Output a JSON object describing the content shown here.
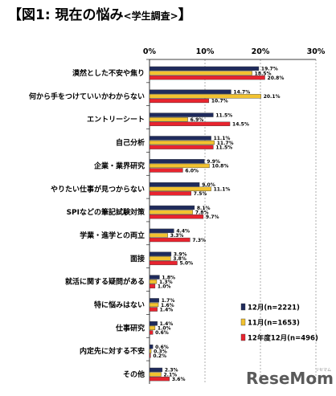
{
  "title": {
    "open": "【",
    "main": "図1: 現在の悩み",
    "sub": "<学生調査>",
    "close": "】"
  },
  "chart_data": {
    "type": "bar",
    "orientation": "horizontal",
    "xlim": [
      0,
      30
    ],
    "ticks": [
      "0%",
      "10%",
      "20%",
      "30%"
    ],
    "grid": true,
    "legend_position": "bottom-right",
    "categories": [
      "漠然とした不安や焦り",
      "何から手をつけていいかわからない",
      "エントリーシート",
      "自己分析",
      "企業・業界研究",
      "やりたい仕事が見つからない",
      "SPIなどの筆記試験対策",
      "学業・進学との両立",
      "面接",
      "就活に関する疑問がある",
      "特に悩みはない",
      "仕事研究",
      "内定先に対する不安",
      "その他"
    ],
    "series": [
      {
        "name": "12月(n=2221)",
        "color": "#1f2b5c",
        "values": [
          19.7,
          14.7,
          11.5,
          11.1,
          9.9,
          9.0,
          8.1,
          4.4,
          3.9,
          1.8,
          1.7,
          1.4,
          0.6,
          2.3
        ],
        "labels": [
          "19.7%",
          "14.7%",
          "11.5%",
          "11.1%",
          "9.9%",
          "9.0%",
          "8.1%",
          "4.4%",
          "3.9%",
          "1.8%",
          "1.7%",
          "1.4%",
          "0.6%",
          "2.3%"
        ]
      },
      {
        "name": "11月(n=1653)",
        "color": "#f2c230",
        "values": [
          18.5,
          20.1,
          6.9,
          11.7,
          10.8,
          11.1,
          7.8,
          3.3,
          3.8,
          1.3,
          1.6,
          1.0,
          0.3,
          2.1
        ],
        "labels": [
          "18.5%",
          "20.1%",
          "6.9%",
          "11.7%",
          "10.8%",
          "11.1%",
          "7.8%",
          "3.3%",
          "3.8%",
          "1.3%",
          "1.6%",
          "1.0%",
          "0.3%",
          "2.1%"
        ]
      },
      {
        "name": "12年度12月(n=496)",
        "color": "#e8242f",
        "values": [
          20.8,
          10.7,
          14.5,
          11.5,
          6.0,
          7.5,
          9.7,
          7.3,
          5.0,
          1.0,
          1.4,
          0.6,
          0.2,
          3.6
        ],
        "labels": [
          "20.8%",
          "10.7%",
          "14.5%",
          "11.5%",
          "6.0%",
          "7.5%",
          "9.7%",
          "7.3%",
          "5.0%",
          "1.0%",
          "1.4%",
          "0.6%",
          "0.2%",
          "3.6%"
        ]
      }
    ]
  },
  "watermark": {
    "text": "ReseMom",
    "small": "リセマム"
  }
}
